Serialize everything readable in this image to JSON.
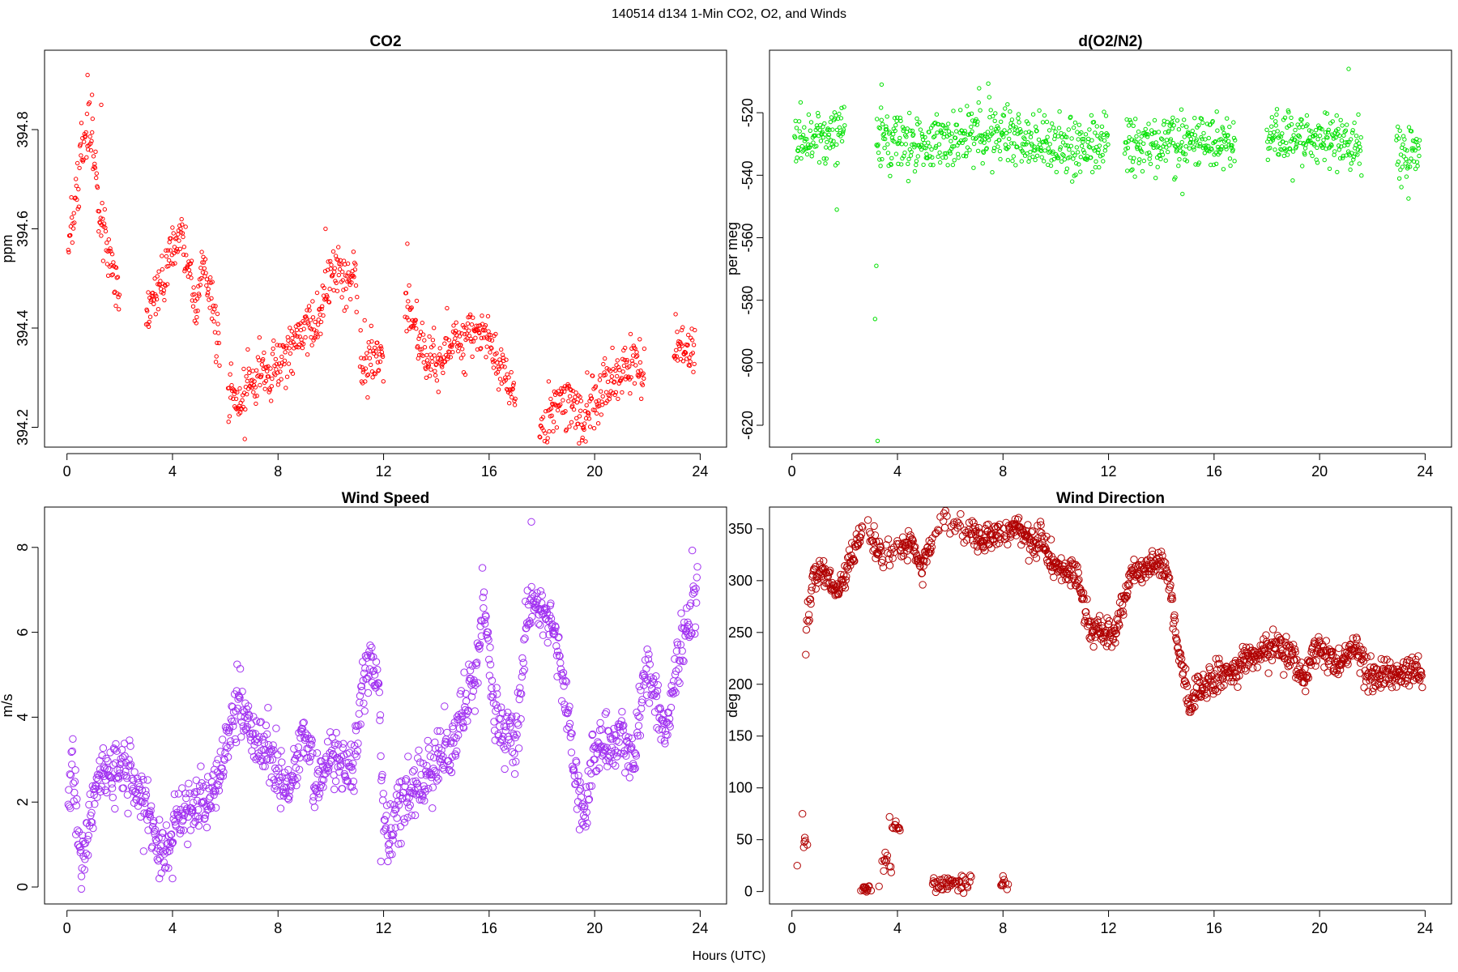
{
  "figure": {
    "suptitle": "140514   d134   1-Min CO2, O2, and Winds",
    "xcaption": "Hours (UTC)"
  },
  "chart_data": [
    {
      "type": "scatter",
      "id": "co2",
      "title": "CO2",
      "ylabel": "ppm",
      "color": "#ff0000",
      "marker_radius": 2.2,
      "xlim": [
        -0.85,
        25.0
      ],
      "ylim": [
        394.16,
        394.96
      ],
      "xticks": [
        0,
        4,
        8,
        12,
        16,
        20,
        24
      ],
      "yticks": [
        394.2,
        394.4,
        394.6,
        394.8
      ],
      "ytick_labels": [
        "394.2",
        "394.4",
        "394.6",
        "394.8"
      ],
      "ytick_rotated": true,
      "spread": 0.028,
      "anchors": [
        [
          0.05,
          394.56
        ],
        [
          0.3,
          394.64
        ],
        [
          0.6,
          394.76
        ],
        [
          0.85,
          394.82
        ],
        [
          1.1,
          394.7
        ],
        [
          1.3,
          394.6
        ],
        [
          1.6,
          394.55
        ],
        [
          1.9,
          394.5
        ],
        [
          2.0,
          394.47
        ],
        [
          3.0,
          394.44
        ],
        [
          3.4,
          394.47
        ],
        [
          3.7,
          394.5
        ],
        [
          4.0,
          394.56
        ],
        [
          4.3,
          394.59
        ],
        [
          4.6,
          394.53
        ],
        [
          4.9,
          394.45
        ],
        [
          5.2,
          394.52
        ],
        [
          5.5,
          394.44
        ],
        [
          5.8,
          394.36
        ],
        [
          6.1,
          394.28
        ],
        [
          6.6,
          394.24
        ],
        [
          7.0,
          394.3
        ],
        [
          7.6,
          394.3
        ],
        [
          8.2,
          394.34
        ],
        [
          8.8,
          394.39
        ],
        [
          9.4,
          394.4
        ],
        [
          9.8,
          394.46
        ],
        [
          10.2,
          394.52
        ],
        [
          10.6,
          394.5
        ],
        [
          10.9,
          394.52
        ],
        [
          11.1,
          394.33
        ],
        [
          11.7,
          394.32
        ],
        [
          12.0,
          394.33
        ],
        [
          12.8,
          394.46
        ],
        [
          13.2,
          394.4
        ],
        [
          13.6,
          394.33
        ],
        [
          14.1,
          394.34
        ],
        [
          14.6,
          394.38
        ],
        [
          15.0,
          394.37
        ],
        [
          15.5,
          394.39
        ],
        [
          15.9,
          394.38
        ],
        [
          16.4,
          394.32
        ],
        [
          16.8,
          394.28
        ],
        [
          17.0,
          394.26
        ],
        [
          17.9,
          394.18
        ],
        [
          18.3,
          394.22
        ],
        [
          18.7,
          394.26
        ],
        [
          19.2,
          394.25
        ],
        [
          19.6,
          394.21
        ],
        [
          20.1,
          394.26
        ],
        [
          20.6,
          394.29
        ],
        [
          21.1,
          394.32
        ],
        [
          21.5,
          394.33
        ],
        [
          21.9,
          394.3
        ],
        [
          23.0,
          394.37
        ],
        [
          23.4,
          394.36
        ],
        [
          23.8,
          394.34
        ]
      ],
      "segments": [
        [
          0.05,
          2.0
        ],
        [
          3.0,
          5.8
        ],
        [
          6.1,
          11.0
        ],
        [
          11.1,
          12.0
        ],
        [
          12.8,
          17.0
        ],
        [
          17.9,
          21.9
        ],
        [
          23.0,
          23.9
        ]
      ],
      "outliers": [
        [
          0.78,
          394.91
        ],
        [
          0.95,
          394.87
        ],
        [
          1.3,
          394.85
        ],
        [
          12.9,
          394.57
        ],
        [
          9.8,
          394.6
        ]
      ]
    },
    {
      "type": "scatter",
      "id": "o2",
      "title": "d(O2/N2)",
      "ylabel": "per meg",
      "color": "#00e000",
      "marker_radius": 2.2,
      "xlim": [
        -0.85,
        25.0
      ],
      "ylim": [
        -627.0,
        -500.0
      ],
      "xticks": [
        0,
        4,
        8,
        12,
        16,
        20,
        24
      ],
      "yticks": [
        -620,
        -600,
        -580,
        -560,
        -540,
        -520
      ],
      "ytick_labels": [
        "-620",
        "-600",
        "-580",
        "-560",
        "-540",
        "-520"
      ],
      "ytick_rotated": true,
      "spread": 4.5,
      "anchors": [
        [
          0.1,
          -529
        ],
        [
          0.6,
          -528
        ],
        [
          1.2,
          -527
        ],
        [
          2.0,
          -528
        ],
        [
          3.2,
          -527
        ],
        [
          4.0,
          -529
        ],
        [
          5.0,
          -530
        ],
        [
          6.0,
          -528
        ],
        [
          7.0,
          -527
        ],
        [
          8.0,
          -528
        ],
        [
          9.0,
          -530
        ],
        [
          10.0,
          -531
        ],
        [
          11.0,
          -531
        ],
        [
          12.0,
          -530
        ],
        [
          12.6,
          -532
        ],
        [
          13.4,
          -531
        ],
        [
          14.2,
          -530
        ],
        [
          15.0,
          -529
        ],
        [
          15.8,
          -530
        ],
        [
          16.8,
          -529
        ],
        [
          18.0,
          -529
        ],
        [
          18.8,
          -528
        ],
        [
          19.6,
          -529
        ],
        [
          20.6,
          -530
        ],
        [
          21.6,
          -531
        ],
        [
          22.9,
          -531
        ],
        [
          23.3,
          -532
        ],
        [
          23.8,
          -533
        ]
      ],
      "segments": [
        [
          0.1,
          2.0
        ],
        [
          3.2,
          12.0
        ],
        [
          12.6,
          16.8
        ],
        [
          18.0,
          21.6
        ],
        [
          22.9,
          23.9
        ]
      ],
      "outliers": [
        [
          1.7,
          -551
        ],
        [
          3.2,
          -569
        ],
        [
          3.15,
          -586
        ],
        [
          3.25,
          -625
        ],
        [
          3.4,
          -511
        ],
        [
          21.1,
          -506
        ],
        [
          14.8,
          -546
        ]
      ]
    },
    {
      "type": "scatter",
      "id": "wspd",
      "title": "Wind Speed",
      "ylabel": "m/s",
      "color": "#a030f0",
      "marker_radius": 4.2,
      "xlim": [
        -0.85,
        25.0
      ],
      "ylim": [
        -0.4,
        8.95
      ],
      "xticks": [
        0,
        4,
        8,
        12,
        16,
        20,
        24
      ],
      "yticks": [
        0,
        2,
        4,
        6,
        8
      ],
      "ytick_labels": [
        "0",
        "2",
        "4",
        "6",
        "8"
      ],
      "ytick_rotated": true,
      "spread": 0.35,
      "anchors": [
        [
          0.05,
          1.6
        ],
        [
          0.2,
          3.0
        ],
        [
          0.45,
          1.0
        ],
        [
          0.65,
          0.5
        ],
        [
          0.9,
          1.8
        ],
        [
          1.3,
          2.6
        ],
        [
          2.0,
          2.7
        ],
        [
          2.4,
          2.7
        ],
        [
          2.8,
          2.3
        ],
        [
          3.1,
          1.6
        ],
        [
          3.4,
          1.1
        ],
        [
          3.8,
          0.9
        ],
        [
          4.1,
          1.7
        ],
        [
          4.6,
          1.8
        ],
        [
          5.1,
          2.0
        ],
        [
          5.5,
          2.2
        ],
        [
          5.8,
          2.8
        ],
        [
          6.2,
          3.8
        ],
        [
          6.5,
          4.3
        ],
        [
          6.9,
          3.7
        ],
        [
          7.4,
          3.4
        ],
        [
          7.9,
          2.8
        ],
        [
          8.3,
          2.3
        ],
        [
          8.6,
          2.8
        ],
        [
          9.0,
          3.8
        ],
        [
          9.4,
          2.5
        ],
        [
          9.8,
          2.8
        ],
        [
          10.4,
          2.9
        ],
        [
          10.9,
          2.8
        ],
        [
          11.2,
          4.8
        ],
        [
          11.5,
          5.5
        ],
        [
          11.8,
          4.6
        ],
        [
          12.0,
          2.0
        ],
        [
          12.2,
          0.9
        ],
        [
          12.5,
          1.8
        ],
        [
          13.0,
          2.2
        ],
        [
          13.5,
          2.6
        ],
        [
          14.0,
          2.9
        ],
        [
          14.5,
          3.2
        ],
        [
          15.0,
          4.2
        ],
        [
          15.5,
          5.0
        ],
        [
          15.8,
          6.8
        ],
        [
          16.2,
          4.0
        ],
        [
          16.6,
          3.6
        ],
        [
          17.1,
          3.8
        ],
        [
          17.5,
          6.8
        ],
        [
          18.0,
          6.6
        ],
        [
          18.5,
          6.0
        ],
        [
          18.9,
          4.5
        ],
        [
          19.3,
          2.6
        ],
        [
          19.6,
          1.5
        ],
        [
          20.0,
          3.5
        ],
        [
          20.5,
          3.3
        ],
        [
          21.0,
          3.6
        ],
        [
          21.5,
          2.8
        ],
        [
          21.9,
          5.2
        ],
        [
          22.3,
          4.4
        ],
        [
          22.7,
          3.6
        ],
        [
          23.1,
          5.3
        ],
        [
          23.5,
          6.2
        ],
        [
          23.9,
          7.1
        ]
      ],
      "segments": [
        [
          0.05,
          23.9
        ]
      ],
      "outliers": [
        [
          17.6,
          8.6
        ],
        [
          0.55,
          0.25
        ],
        [
          3.5,
          0.2
        ],
        [
          4.0,
          0.2
        ],
        [
          11.9,
          0.6
        ]
      ]
    },
    {
      "type": "scatter",
      "id": "wdir",
      "title": "Wind Direction",
      "ylabel": "deg",
      "color": "#b00000",
      "marker_radius": 4.2,
      "xlim": [
        -0.85,
        25.0
      ],
      "ylim": [
        -12,
        371
      ],
      "xticks": [
        0,
        4,
        8,
        12,
        16,
        20,
        24
      ],
      "yticks": [
        0,
        50,
        100,
        150,
        200,
        250,
        300,
        350
      ],
      "ytick_labels": [
        "0",
        "50",
        "100",
        "150",
        "200",
        "250",
        "300",
        "350"
      ],
      "ytick_rotated": false,
      "spread": 7,
      "anchors": [
        [
          0.45,
          210
        ],
        [
          0.6,
          260
        ],
        [
          0.8,
          300
        ],
        [
          1.1,
          310
        ],
        [
          1.4,
          300
        ],
        [
          1.8,
          285
        ],
        [
          2.2,
          320
        ],
        [
          2.6,
          345
        ],
        [
          3.0,
          342
        ],
        [
          3.4,
          325
        ],
        [
          4.1,
          330
        ],
        [
          4.5,
          340
        ],
        [
          4.9,
          310
        ],
        [
          5.2,
          330
        ],
        [
          5.6,
          355
        ],
        [
          6.0,
          355
        ],
        [
          6.6,
          348
        ],
        [
          7.2,
          342
        ],
        [
          7.8,
          345
        ],
        [
          8.4,
          350
        ],
        [
          9.0,
          338
        ],
        [
          9.4,
          342
        ],
        [
          9.8,
          318
        ],
        [
          10.2,
          310
        ],
        [
          10.8,
          308
        ],
        [
          11.3,
          250
        ],
        [
          11.7,
          254
        ],
        [
          12.2,
          245
        ],
        [
          12.5,
          270
        ],
        [
          12.9,
          305
        ],
        [
          13.4,
          310
        ],
        [
          13.9,
          320
        ],
        [
          14.3,
          300
        ],
        [
          14.6,
          240
        ],
        [
          14.9,
          205
        ],
        [
          15.1,
          175
        ],
        [
          15.4,
          195
        ],
        [
          16.0,
          205
        ],
        [
          16.6,
          210
        ],
        [
          17.2,
          225
        ],
        [
          17.8,
          230
        ],
        [
          18.4,
          238
        ],
        [
          19.0,
          225
        ],
        [
          19.4,
          200
        ],
        [
          19.8,
          230
        ],
        [
          20.2,
          235
        ],
        [
          20.6,
          220
        ],
        [
          21.0,
          225
        ],
        [
          21.4,
          235
        ],
        [
          21.8,
          210
        ],
        [
          22.2,
          205
        ],
        [
          22.6,
          215
        ],
        [
          23.0,
          210
        ],
        [
          23.5,
          215
        ],
        [
          23.9,
          210
        ]
      ],
      "segments": [
        [
          0.45,
          23.9
        ]
      ],
      "low_clusters": [
        [
          0.0,
          0.6,
          42,
          11
        ],
        [
          2.6,
          3.0,
          3,
          3
        ],
        [
          3.4,
          3.8,
          25,
          15
        ],
        [
          3.8,
          4.1,
          64,
          6
        ],
        [
          5.3,
          6.8,
          8,
          7
        ],
        [
          7.9,
          8.2,
          6,
          5
        ]
      ],
      "outliers": [
        [
          0.4,
          75
        ],
        [
          3.7,
          72
        ],
        [
          3.3,
          5
        ],
        [
          8.0,
          15
        ],
        [
          0.2,
          25
        ]
      ]
    }
  ]
}
